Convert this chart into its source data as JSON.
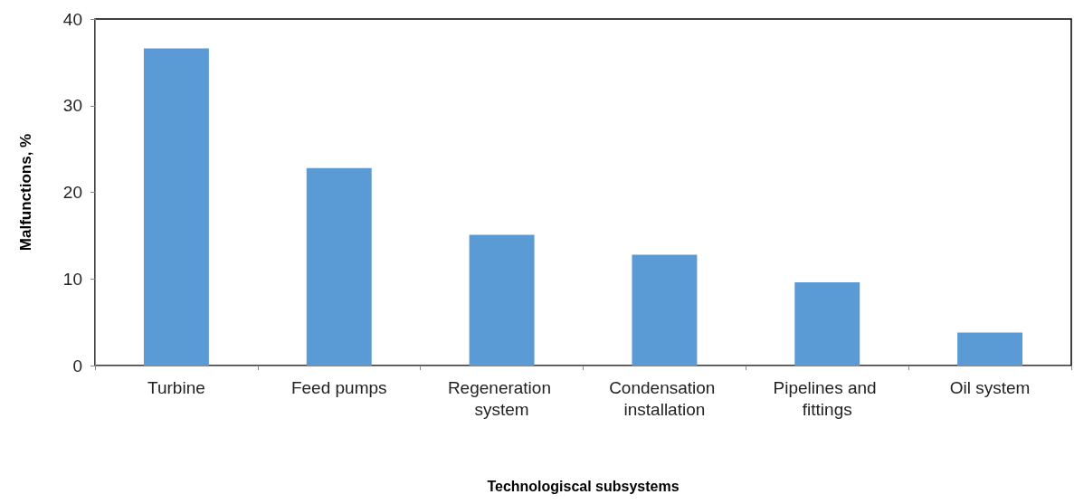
{
  "chart_data": {
    "type": "bar",
    "xlabel": "Technologiscal subsystems",
    "ylabel": "Malfunctions, %",
    "categories": [
      "Turbine",
      "Feed pumps",
      "Regeneration system",
      "Condensation installation",
      "Pipelines and fittings",
      "Oil system"
    ],
    "values": [
      36.6,
      22.8,
      15.1,
      12.8,
      9.6,
      3.8
    ],
    "color": "#5b9bd5",
    "ylim": [
      0,
      40
    ],
    "yticks": [
      0,
      10,
      20,
      30,
      40
    ],
    "grid": false
  }
}
